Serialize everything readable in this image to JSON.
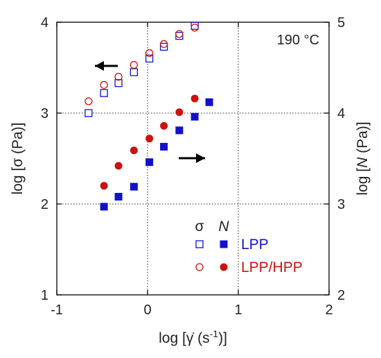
{
  "chart_data": {
    "type": "scatter",
    "title": "",
    "xlabel": "log [γ̇ (s-1)]",
    "xlabel_parts": {
      "prefix": "log [",
      "gammadot": "γ̇",
      "unit": " (s",
      "exp": "-1",
      "suffix": ")]"
    },
    "ylabel_left": "log [σ (Pa)]",
    "ylabel_right": "log [N (Pa)]",
    "ylabel_right_parts": {
      "prefix": "log [",
      "italic": "N",
      "suffix": " (Pa)]"
    },
    "xlim": [
      -1,
      2
    ],
    "ylim_left": [
      1,
      4
    ],
    "ylim_right": [
      2,
      5
    ],
    "xticks": [
      "-1",
      "0",
      "1",
      "2"
    ],
    "xtick_values": [
      -1,
      0,
      1,
      2
    ],
    "yticks_left": [
      "1",
      "2",
      "3",
      "4"
    ],
    "ytick_values_left": [
      1,
      2,
      3,
      4
    ],
    "yticks_right": [
      "2",
      "3",
      "4",
      "5"
    ],
    "ytick_values_right": [
      2,
      3,
      4,
      5
    ],
    "grid": "dotted at x = 0, 1 and y = 2, 3",
    "annotation": "190 °C",
    "legend": {
      "header_sigma": "σ",
      "header_n": "N",
      "placement": "bottom-right",
      "entries": [
        "LPP",
        "LPP/HPP"
      ]
    },
    "series": [
      {
        "name": "LPP",
        "quantity": "σ",
        "axis": "left",
        "marker": "open-square",
        "color": "#1111cc",
        "x": [
          -0.65,
          -0.48,
          -0.32,
          -0.15,
          0.02,
          0.18,
          0.35,
          0.52
        ],
        "y": [
          3.0,
          3.22,
          3.33,
          3.45,
          3.6,
          3.73,
          3.85,
          3.96
        ]
      },
      {
        "name": "LPP/HPP",
        "quantity": "σ",
        "axis": "left",
        "marker": "open-circle",
        "color": "#cc1111",
        "x": [
          -0.65,
          -0.48,
          -0.32,
          -0.15,
          0.02,
          0.18,
          0.35,
          0.52
        ],
        "y": [
          3.13,
          3.31,
          3.4,
          3.53,
          3.66,
          3.76,
          3.87,
          3.94
        ]
      },
      {
        "name": "LPP",
        "quantity": "N",
        "axis": "right",
        "marker": "filled-square",
        "color": "#1111cc",
        "x": [
          -0.48,
          -0.32,
          -0.15,
          0.02,
          0.18,
          0.35,
          0.52,
          0.68
        ],
        "y": [
          2.97,
          3.08,
          3.19,
          3.46,
          3.63,
          3.81,
          3.96,
          4.12
        ]
      },
      {
        "name": "LPP/HPP",
        "quantity": "N",
        "axis": "right",
        "marker": "filled-circle",
        "color": "#cc1111",
        "x": [
          -0.48,
          -0.32,
          -0.15,
          0.02,
          0.18,
          0.35,
          0.52
        ],
        "y": [
          3.2,
          3.42,
          3.59,
          3.72,
          3.86,
          4.01,
          4.16
        ]
      }
    ]
  }
}
